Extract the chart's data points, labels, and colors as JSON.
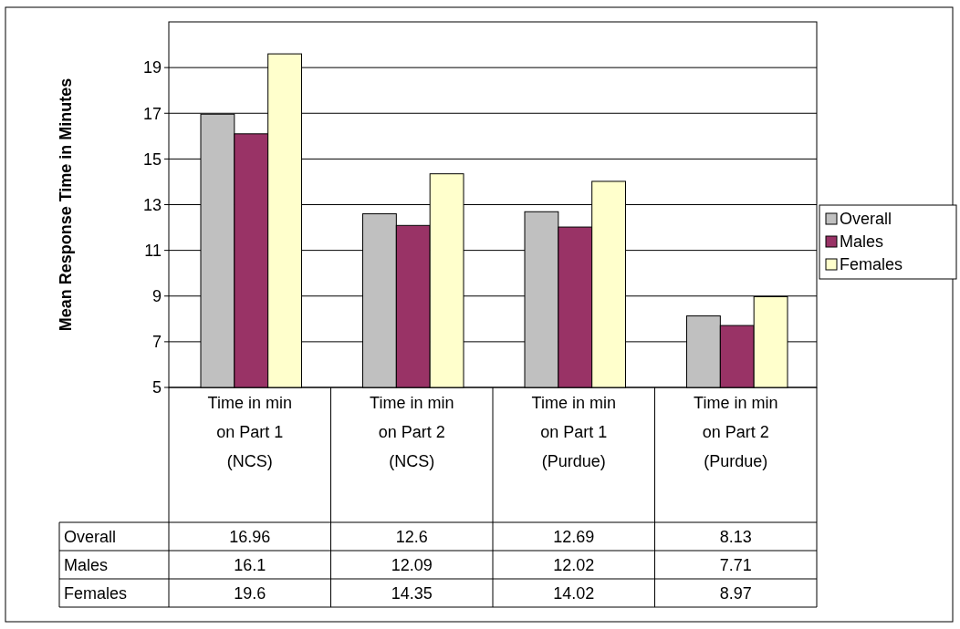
{
  "chart_data": {
    "type": "bar",
    "ylabel": "Mean Response Time in Minutes",
    "categories": [
      "Time in min on Part 1 (NCS)",
      "Time in min on Part 2 (NCS)",
      "Time in min on Part 1 (Purdue)",
      "Time in min on Part 2 (Purdue)"
    ],
    "series": [
      {
        "name": "Overall",
        "color": "#c0c0c0",
        "values": [
          16.96,
          12.6,
          12.69,
          8.13
        ]
      },
      {
        "name": "Males",
        "color": "#993366",
        "values": [
          16.1,
          12.09,
          12.02,
          7.71
        ]
      },
      {
        "name": "Females",
        "color": "#ffffcc",
        "values": [
          19.6,
          14.35,
          14.02,
          8.97
        ]
      }
    ],
    "ylim": [
      5,
      21
    ],
    "yticks": [
      5,
      7,
      9,
      11,
      13,
      15,
      17,
      19
    ],
    "grid": "y",
    "legend": "right",
    "data_labels": true
  }
}
